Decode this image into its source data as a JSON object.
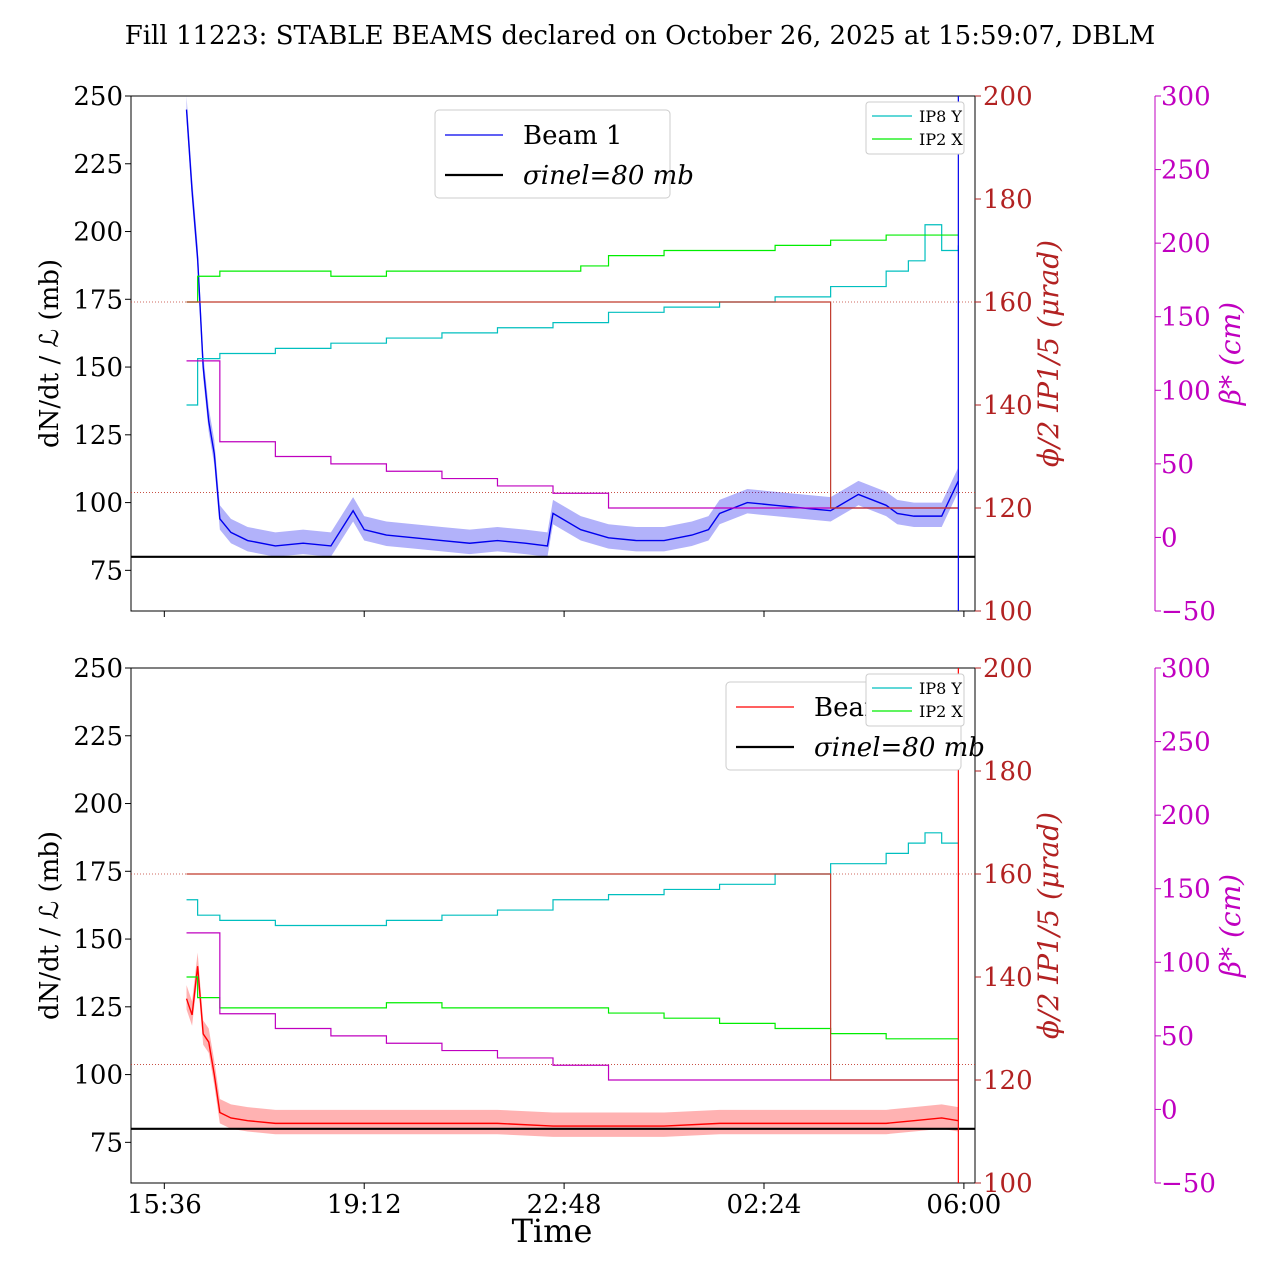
{
  "title": "Fill 11223: STABLE BEAMS declared on October 26, 2025 at 15:59:07, DBLM",
  "xlabel": "Time",
  "x_ticks": [
    "15:36",
    "19:12",
    "22:48",
    "02:24",
    "06:00"
  ],
  "left_axis_label": "dN/dt / ℒ (mb)",
  "right_axis_label": "ϕ/2 IP1/5 (μrad)",
  "far_right_axis_label": "β* (cm)",
  "colors": {
    "beam1": "#0000ee",
    "beam2": "#ff0000",
    "ip8y": "#00bfbf",
    "ip2x": "#00ee00",
    "crossing": "#c0392b",
    "betastar": "#bf00bf",
    "sigma": "#000000",
    "right_axis": "#b22222",
    "far_right_axis": "#c000c0"
  },
  "chart_data": [
    {
      "type": "line",
      "panel": "top",
      "x_unit": "hours since 15:36",
      "x_ticks": [
        0,
        3.6,
        7.2,
        10.8,
        14.4
      ],
      "xlim": [
        -0.6,
        14.6
      ],
      "ylim_left": [
        60,
        250
      ],
      "yticks_left": [
        75,
        100,
        125,
        150,
        175,
        200,
        225,
        250
      ],
      "ylim_right": [
        100,
        200
      ],
      "yticks_right": [
        100,
        120,
        140,
        160,
        180,
        200
      ],
      "ylim_far_right": [
        -50,
        300
      ],
      "yticks_far_right": [
        -50,
        0,
        50,
        100,
        150,
        200,
        250,
        300
      ],
      "legend_main": [
        "Beam 1",
        "σinel=80 mb"
      ],
      "legend_main_position": "upper-center",
      "legend_small": [
        "IP8 Y",
        "IP2 X"
      ],
      "legend_small_position": "top-right",
      "series": [
        {
          "name": "Beam 1",
          "axis": "left",
          "x": [
            0.4,
            0.5,
            0.6,
            0.7,
            0.8,
            0.9,
            1.0,
            1.2,
            1.5,
            2.0,
            2.5,
            3.0,
            3.4,
            3.6,
            4.0,
            4.5,
            5.0,
            5.5,
            6.0,
            6.5,
            6.9,
            7.0,
            7.5,
            8.0,
            8.5,
            9.0,
            9.5,
            9.8,
            10.0,
            10.5,
            11.0,
            11.5,
            12.0,
            12.5,
            13.0,
            13.2,
            13.5,
            14.0,
            14.3
          ],
          "y": [
            245,
            215,
            190,
            150,
            130,
            118,
            94,
            89,
            86,
            84,
            85,
            84,
            97,
            90,
            88,
            87,
            86,
            85,
            86,
            85,
            84,
            96,
            90,
            87,
            86,
            86,
            88,
            90,
            96,
            100,
            99,
            98,
            97,
            103,
            99,
            96,
            95,
            95,
            108
          ]
        },
        {
          "name": "σinel=80 mb",
          "axis": "left",
          "x": [
            -0.6,
            14.6
          ],
          "y": [
            80,
            80
          ]
        },
        {
          "name": "IP8 Y",
          "axis": "right",
          "x": [
            0.4,
            0.6,
            1.0,
            2.0,
            3.0,
            4.0,
            5.0,
            6.0,
            7.0,
            8.0,
            9.0,
            10.0,
            11.0,
            12.0,
            13.0,
            13.4,
            13.7,
            14.0,
            14.3
          ],
          "y": [
            140,
            149,
            150,
            151,
            152,
            153,
            154,
            155,
            156,
            158,
            159,
            160,
            161,
            163,
            166,
            168,
            175,
            170,
            171
          ]
        },
        {
          "name": "IP2 X",
          "axis": "right",
          "x": [
            0.4,
            0.6,
            1.0,
            2.0,
            3.0,
            4.0,
            5.0,
            6.0,
            7.0,
            7.5,
            8.0,
            9.0,
            10.0,
            11.0,
            12.0,
            13.0,
            14.3
          ],
          "y": [
            160,
            165,
            166,
            166,
            165,
            166,
            166,
            166,
            166,
            167,
            169,
            170,
            170,
            171,
            172,
            173,
            173
          ]
        },
        {
          "name": "β* (cm)",
          "axis": "far_right",
          "x": [
            0.4,
            1.0,
            2.0,
            3.0,
            4.0,
            5.0,
            6.0,
            7.0,
            8.0,
            10.0,
            12.0,
            14.3
          ],
          "y": [
            120,
            65,
            55,
            50,
            45,
            40,
            35,
            30,
            20,
            20,
            20,
            20
          ]
        },
        {
          "name": "crossing angle",
          "axis": "right",
          "x": [
            0.4,
            9.0,
            9.2,
            12.0,
            12.5,
            14.3
          ],
          "y": [
            160,
            160,
            160,
            120,
            120,
            120
          ]
        }
      ],
      "hlines_dotted": [
        {
          "axis": "right",
          "y": 160
        },
        {
          "axis": "right",
          "y": 123
        }
      ]
    },
    {
      "type": "line",
      "panel": "bottom",
      "x_unit": "hours since 15:36",
      "x_ticks": [
        0,
        3.6,
        7.2,
        10.8,
        14.4
      ],
      "xlim": [
        -0.6,
        14.6
      ],
      "ylim_left": [
        60,
        250
      ],
      "yticks_left": [
        75,
        100,
        125,
        150,
        175,
        200,
        225,
        250
      ],
      "ylim_right": [
        100,
        200
      ],
      "yticks_right": [
        100,
        120,
        140,
        160,
        180,
        200
      ],
      "ylim_far_right": [
        -50,
        300
      ],
      "yticks_far_right": [
        -50,
        0,
        50,
        100,
        150,
        200,
        250,
        300
      ],
      "legend_main": [
        "Beam 2",
        "σinel=80 mb"
      ],
      "legend_main_position": "upper-right",
      "legend_small": [
        "IP8 Y",
        "IP2 X"
      ],
      "legend_small_position": "top-right",
      "series": [
        {
          "name": "Beam 2",
          "axis": "left",
          "x": [
            0.4,
            0.5,
            0.6,
            0.7,
            0.8,
            0.9,
            1.0,
            1.2,
            1.5,
            2.0,
            3.0,
            4.0,
            5.0,
            6.0,
            7.0,
            8.0,
            9.0,
            10.0,
            11.0,
            12.0,
            13.0,
            13.5,
            14.0,
            14.3
          ],
          "y": [
            128,
            122,
            140,
            115,
            112,
            100,
            86,
            84,
            83,
            82,
            82,
            82,
            82,
            82,
            81,
            81,
            81,
            82,
            82,
            82,
            82,
            83,
            84,
            83
          ]
        },
        {
          "name": "σinel=80 mb",
          "axis": "left",
          "x": [
            -0.6,
            14.6
          ],
          "y": [
            80,
            80
          ]
        },
        {
          "name": "IP8 Y",
          "axis": "right",
          "x": [
            0.4,
            0.6,
            1.0,
            2.0,
            3.0,
            4.0,
            5.0,
            6.0,
            7.0,
            8.0,
            9.0,
            10.0,
            11.0,
            12.0,
            13.0,
            13.4,
            13.7,
            14.0,
            14.3
          ],
          "y": [
            155,
            152,
            151,
            150,
            150,
            151,
            152,
            153,
            155,
            156,
            157,
            158,
            160,
            162,
            164,
            166,
            168,
            166,
            166
          ]
        },
        {
          "name": "IP2 X",
          "axis": "right",
          "x": [
            0.4,
            0.6,
            1.0,
            2.0,
            3.0,
            4.0,
            5.0,
            6.0,
            7.0,
            7.5,
            8.0,
            9.0,
            10.0,
            11.0,
            12.0,
            13.0,
            14.3
          ],
          "y": [
            140,
            136,
            134,
            134,
            134,
            135,
            134,
            134,
            134,
            134,
            133,
            132,
            131,
            130,
            129,
            128,
            128
          ]
        },
        {
          "name": "β* (cm)",
          "axis": "far_right",
          "x": [
            0.4,
            1.0,
            2.0,
            3.0,
            4.0,
            5.0,
            6.0,
            7.0,
            8.0,
            10.0,
            12.0,
            14.3
          ],
          "y": [
            120,
            65,
            55,
            50,
            45,
            40,
            35,
            30,
            20,
            20,
            20,
            20
          ]
        },
        {
          "name": "crossing angle",
          "axis": "right",
          "x": [
            0.4,
            9.0,
            9.2,
            12.0,
            12.5,
            14.3
          ],
          "y": [
            160,
            160,
            160,
            120,
            120,
            120
          ]
        }
      ],
      "hlines_dotted": [
        {
          "axis": "right",
          "y": 160
        },
        {
          "axis": "right",
          "y": 123
        }
      ]
    }
  ]
}
